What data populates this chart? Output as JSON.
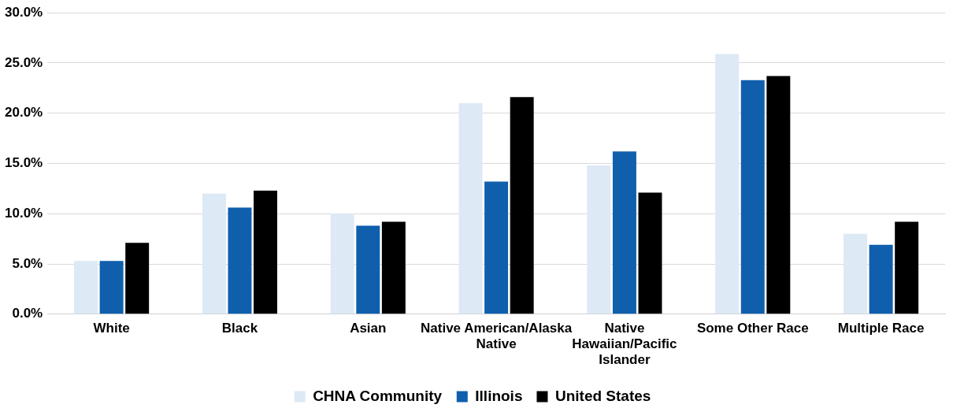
{
  "chart_data": {
    "type": "bar",
    "categories": [
      "White",
      "Black",
      "Asian",
      "Native American/Alaska Native",
      "Native Hawaiian/Pacific Islander",
      "Some Other Race",
      "Multiple Race"
    ],
    "series": [
      {
        "name": "CHNA Community",
        "color": "#dde9f5",
        "values": [
          5.3,
          12.0,
          10.0,
          21.0,
          14.8,
          25.9,
          8.0
        ]
      },
      {
        "name": "Illinois",
        "color": "#0f5fad",
        "values": [
          5.3,
          10.6,
          8.8,
          13.2,
          16.2,
          23.3,
          6.9
        ]
      },
      {
        "name": "United States",
        "color": "#000000",
        "values": [
          7.1,
          12.3,
          9.2,
          21.6,
          12.1,
          23.7,
          9.2
        ]
      }
    ],
    "ylim": [
      0,
      30
    ],
    "yticks": [
      {
        "value": 0,
        "label": "0.0%"
      },
      {
        "value": 5,
        "label": "5.0%"
      },
      {
        "value": 10,
        "label": "10.0%"
      },
      {
        "value": 15,
        "label": "15.0%"
      },
      {
        "value": 20,
        "label": "20.0%"
      },
      {
        "value": 25,
        "label": "25.0%"
      },
      {
        "value": 30,
        "label": "30.0%"
      }
    ],
    "grid": "y",
    "legend": "bottom"
  }
}
